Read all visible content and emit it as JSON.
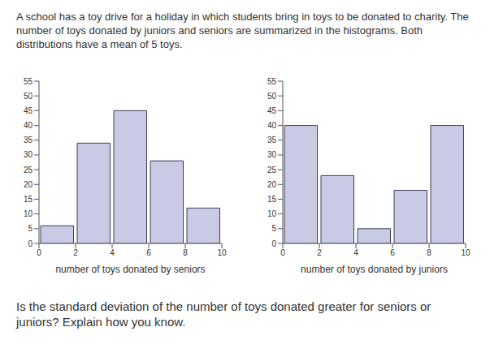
{
  "intro": "A school has a toy drive for a holiday in which students bring in toys to be donated to charity. The number of toys donated by juniors and seniors are summarized in the histograms. Both distributions have a mean of 5 toys.",
  "question": "Is the standard deviation of the number of toys donated greater for seniors or juniors? Explain how you know.",
  "chart_data": [
    {
      "type": "histogram",
      "xlabel": "number of toys donated by seniors",
      "bins": [
        0,
        2,
        4,
        6,
        8,
        10
      ],
      "values": [
        6,
        34,
        45,
        28,
        12
      ],
      "color": "#c8cbe3",
      "xlim": [
        0,
        10
      ],
      "ylim": [
        0,
        55
      ],
      "xticks": [
        0,
        2,
        4,
        6,
        8,
        10
      ],
      "yticks": [
        0,
        5,
        10,
        15,
        20,
        25,
        30,
        35,
        40,
        45,
        50,
        55
      ]
    },
    {
      "type": "histogram",
      "xlabel": "number of toys donated by juniors",
      "bins": [
        0,
        2,
        4,
        6,
        8,
        10
      ],
      "values": [
        40,
        23,
        5,
        18,
        40
      ],
      "color": "#c8cbe3",
      "xlim": [
        0,
        10
      ],
      "ylim": [
        0,
        55
      ],
      "xticks": [
        0,
        2,
        4,
        6,
        8,
        10
      ],
      "yticks": [
        0,
        5,
        10,
        15,
        20,
        25,
        30,
        35,
        40,
        45,
        50,
        55
      ]
    }
  ]
}
